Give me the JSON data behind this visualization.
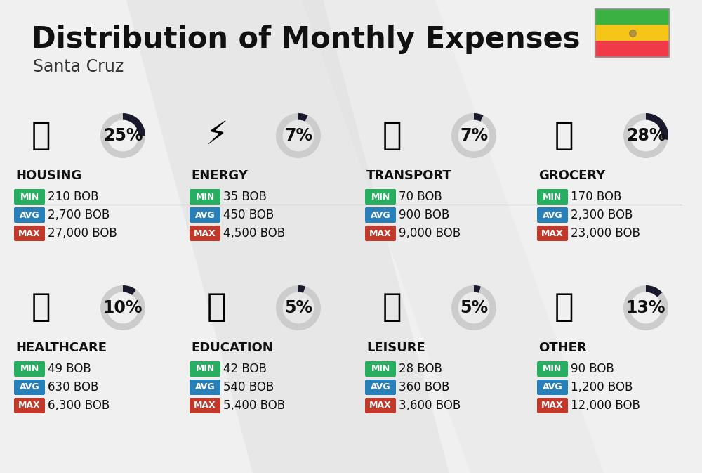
{
  "title": "Distribution of Monthly Expenses",
  "subtitle": "Santa Cruz",
  "background_color": "#f0f0f0",
  "categories": [
    {
      "name": "HOUSING",
      "percent": 25,
      "min_val": "210 BOB",
      "avg_val": "2,700 BOB",
      "max_val": "27,000 BOB",
      "row": 0,
      "col": 0
    },
    {
      "name": "ENERGY",
      "percent": 7,
      "min_val": "35 BOB",
      "avg_val": "450 BOB",
      "max_val": "4,500 BOB",
      "row": 0,
      "col": 1
    },
    {
      "name": "TRANSPORT",
      "percent": 7,
      "min_val": "70 BOB",
      "avg_val": "900 BOB",
      "max_val": "9,000 BOB",
      "row": 0,
      "col": 2
    },
    {
      "name": "GROCERY",
      "percent": 28,
      "min_val": "170 BOB",
      "avg_val": "2,300 BOB",
      "max_val": "23,000 BOB",
      "row": 0,
      "col": 3
    },
    {
      "name": "HEALTHCARE",
      "percent": 10,
      "min_val": "49 BOB",
      "avg_val": "630 BOB",
      "max_val": "6,300 BOB",
      "row": 1,
      "col": 0
    },
    {
      "name": "EDUCATION",
      "percent": 5,
      "min_val": "42 BOB",
      "avg_val": "540 BOB",
      "max_val": "5,400 BOB",
      "row": 1,
      "col": 1
    },
    {
      "name": "LEISURE",
      "percent": 5,
      "min_val": "28 BOB",
      "avg_val": "360 BOB",
      "max_val": "3,600 BOB",
      "row": 1,
      "col": 2
    },
    {
      "name": "OTHER",
      "percent": 13,
      "min_val": "90 BOB",
      "avg_val": "1,200 BOB",
      "max_val": "12,000 BOB",
      "row": 1,
      "col": 3
    }
  ],
  "color_min": "#27ae60",
  "color_avg": "#2980b9",
  "color_max": "#c0392b",
  "donut_filled": "#1a1a2e",
  "donut_empty": "#cccccc",
  "label_min": "MIN",
  "label_avg": "AVG",
  "label_max": "MAX",
  "title_fontsize": 30,
  "subtitle_fontsize": 17,
  "category_fontsize": 13,
  "value_fontsize": 12,
  "percent_fontsize": 17,
  "flag_red": "#f03a47",
  "flag_yellow": "#f5c518",
  "flag_green": "#3bb143"
}
